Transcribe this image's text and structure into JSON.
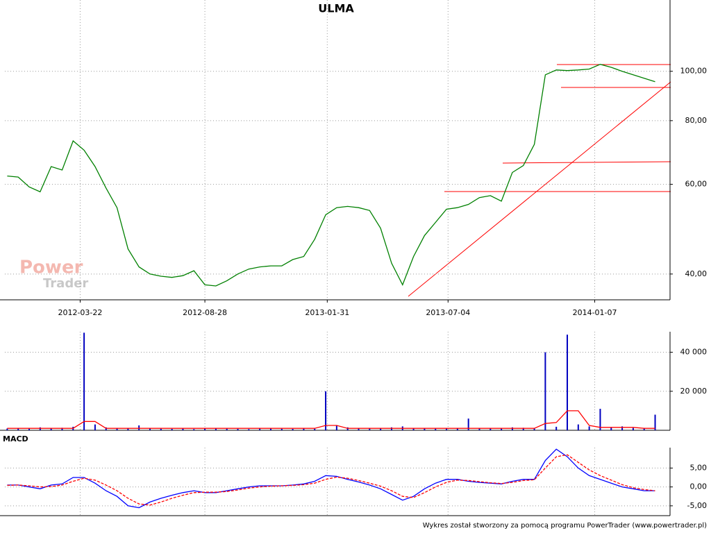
{
  "title": "ULMA",
  "footer": "Wykres został stworzony za pomocą programu PowerTrader (www.powertrader.pl)",
  "watermark": [
    "Power",
    "Trader"
  ],
  "chart_data": [
    {
      "type": "line",
      "log_scale": true,
      "grid": true,
      "xlim": [
        "2011-12-17",
        "2014-04-13"
      ],
      "xticks": [
        "2012-03-22",
        "2012-08-28",
        "2013-01-31",
        "2013-07-04",
        "2014-01-07"
      ],
      "ylim": [
        35.6,
        138
      ],
      "yticks": [
        {
          "value": 40,
          "label": "40,00"
        },
        {
          "value": 60,
          "label": "60,00"
        },
        {
          "value": 80,
          "label": "80,00"
        },
        {
          "value": 100,
          "label": "100,00"
        }
      ],
      "x": [
        "2011-12-20",
        "2012-01-03",
        "2012-01-17",
        "2012-01-31",
        "2012-02-14",
        "2012-02-28",
        "2012-03-13",
        "2012-03-27",
        "2012-04-10",
        "2012-04-24",
        "2012-05-08",
        "2012-05-22",
        "2012-06-05",
        "2012-06-19",
        "2012-07-03",
        "2012-07-17",
        "2012-07-31",
        "2012-08-14",
        "2012-08-28",
        "2012-09-11",
        "2012-09-25",
        "2012-10-09",
        "2012-10-23",
        "2012-11-06",
        "2012-11-20",
        "2012-12-04",
        "2012-12-18",
        "2013-01-01",
        "2013-01-15",
        "2013-01-29",
        "2013-02-12",
        "2013-02-26",
        "2013-03-12",
        "2013-03-26",
        "2013-04-09",
        "2013-04-23",
        "2013-05-07",
        "2013-05-21",
        "2013-06-04",
        "2013-06-18",
        "2013-07-02",
        "2013-07-16",
        "2013-07-30",
        "2013-08-13",
        "2013-08-27",
        "2013-09-10",
        "2013-09-24",
        "2013-10-08",
        "2013-10-22",
        "2013-11-05",
        "2013-11-19",
        "2013-12-03",
        "2013-12-17",
        "2013-12-31",
        "2014-01-14",
        "2014-01-28",
        "2014-02-11",
        "2014-02-25",
        "2014-03-11",
        "2014-03-25"
      ],
      "series": [
        {
          "color": "#008000",
          "values": [
            62.3,
            62,
            59.3,
            58,
            65,
            64,
            73,
            70,
            65,
            59,
            54,
            44.8,
            41.3,
            40,
            39.6,
            39.4,
            39.7,
            40.6,
            38.1,
            37.9,
            38.8,
            40,
            40.9,
            41.3,
            41.5,
            41.5,
            42.7,
            43.3,
            46.8,
            52.3,
            54,
            54.3,
            54,
            53.3,
            49.2,
            42,
            38.1,
            43.3,
            47.6,
            50.5,
            53.6,
            54,
            54.8,
            56.5,
            57,
            55.6,
            63.3,
            65.3,
            71.9,
            98.4,
            100.6,
            100.3,
            100.6,
            101,
            103.2,
            101.8,
            100,
            98.4,
            96.9,
            95.4
          ]
        }
      ]
    },
    {
      "type": "bar",
      "grid": true,
      "ylim": [
        0,
        50500
      ],
      "yticks": [
        {
          "value": 20000,
          "label": "20 000"
        },
        {
          "value": 40000,
          "label": "40 000"
        }
      ],
      "series": [
        {
          "color": "#0000c0",
          "values": [
            900,
            1200,
            800,
            1500,
            1100,
            1300,
            1800,
            50000,
            3000,
            1500,
            1200,
            1000,
            2500,
            900,
            800,
            700,
            1000,
            600,
            900,
            1200,
            800,
            700,
            600,
            900,
            1000,
            800,
            700,
            900,
            800,
            20000,
            2500,
            1500,
            1200,
            1000,
            900,
            1500,
            2000,
            1200,
            1000,
            800,
            900,
            1100,
            6000,
            1200,
            1000,
            900,
            1500,
            1300,
            1000,
            40000,
            1800,
            49000,
            3000,
            2000,
            11000,
            1500,
            2000,
            1200,
            900,
            8000
          ]
        },
        {
          "type": "line",
          "color": "#ff0000",
          "values": [
            1000,
            1000,
            1000,
            1000,
            1000,
            1000,
            1000,
            4500,
            4500,
            1000,
            1000,
            1000,
            1000,
            1000,
            1000,
            1000,
            1000,
            1000,
            1000,
            1000,
            1000,
            1000,
            1000,
            1000,
            1000,
            1000,
            1000,
            1000,
            1000,
            2500,
            2500,
            1000,
            1000,
            1000,
            1000,
            1000,
            1000,
            1000,
            1000,
            1000,
            1000,
            1000,
            1000,
            1000,
            1000,
            1000,
            1000,
            1000,
            1000,
            3500,
            4000,
            10000,
            10000,
            2500,
            1500,
            1500,
            1500,
            1500,
            1000,
            1000
          ]
        }
      ]
    },
    {
      "type": "line",
      "title": "MACD",
      "grid": true,
      "ylim": [
        -7.6,
        10.4
      ],
      "yticks": [
        {
          "value": -5,
          "label": "-5,00"
        },
        {
          "value": 0,
          "label": "0,00"
        },
        {
          "value": 5,
          "label": "5,00"
        }
      ],
      "series": [
        {
          "color": "#0000ff",
          "values": [
            0.5,
            0.5,
            0,
            -0.5,
            0.5,
            0.8,
            2.5,
            2.5,
            1,
            -1,
            -2.5,
            -5,
            -5.5,
            -4,
            -3,
            -2.2,
            -1.5,
            -1,
            -1.5,
            -1.5,
            -1,
            -0.5,
            0,
            0.3,
            0.3,
            0.3,
            0.5,
            0.8,
            1.5,
            3,
            2.8,
            2,
            1.3,
            0.5,
            -0.5,
            -2,
            -3.5,
            -2.5,
            -0.5,
            1,
            2,
            2,
            1.5,
            1.2,
            1,
            0.8,
            1.5,
            2,
            2,
            7,
            10,
            8,
            5,
            3,
            2,
            1,
            0,
            -0.5,
            -1,
            -1
          ]
        },
        {
          "color": "#ff0000",
          "dashed": true,
          "values": [
            0.4,
            0.5,
            0.3,
            0,
            0.1,
            0.5,
            1.5,
            2.3,
            1.8,
            0.5,
            -1,
            -3,
            -4.5,
            -4.8,
            -4,
            -3,
            -2.2,
            -1.5,
            -1.4,
            -1.4,
            -1.2,
            -0.8,
            -0.3,
            0,
            0.2,
            0.3,
            0.4,
            0.6,
            1,
            2,
            2.6,
            2.3,
            1.7,
            1,
            0.2,
            -1,
            -2.5,
            -2.8,
            -1.5,
            0,
            1.2,
            1.8,
            1.7,
            1.4,
            1.1,
            0.9,
            1.2,
            1.7,
            1.9,
            5,
            8,
            8.5,
            6.5,
            4.5,
            3,
            1.8,
            0.6,
            -0.2,
            -0.7,
            -1
          ]
        }
      ]
    }
  ]
}
